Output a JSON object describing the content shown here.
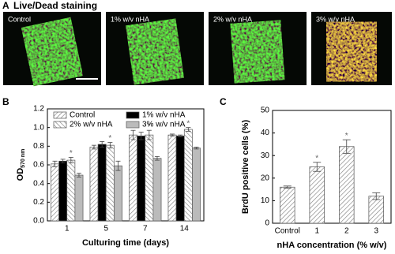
{
  "panel_a": {
    "letter": "A",
    "title": "Live/Dead staining",
    "images": [
      "Control",
      "1% w/v nHA",
      "2% w/v nHA",
      "3% w/v nHA"
    ]
  },
  "chart_data": [
    {
      "type": "bar",
      "letter": "B",
      "ylabel": "OD",
      "ylabel_sub": "570 nm",
      "xlabel": "Culturing time (days)",
      "categories": [
        "1",
        "5",
        "7",
        "14"
      ],
      "ylim": [
        0,
        1.2
      ],
      "yticks": [
        {
          "value": 0,
          "label": "0.0"
        },
        0.2,
        0.4,
        0.6,
        0.8,
        {
          "value": 1,
          "label": "1.0"
        },
        1.2
      ],
      "legend": "top",
      "series": [
        {
          "name": "Control",
          "color": "#ffffff",
          "hatch": "diagonal",
          "values": [
            0.61,
            0.79,
            0.92,
            0.92
          ],
          "errors": [
            0.03,
            0.02,
            0.05,
            0.01
          ]
        },
        {
          "name": "1% w/v nHA",
          "color": "#000000",
          "values": [
            0.64,
            0.82,
            0.91,
            0.91
          ],
          "errors": [
            0.02,
            0.03,
            0.04,
            0.01
          ]
        },
        {
          "name": "2% w/v nHA",
          "color": "#ffffff",
          "hatch": "back-diagonal",
          "values": [
            0.65,
            0.81,
            0.92,
            0.98
          ],
          "errors": [
            0.03,
            0.03,
            0.05,
            0.02
          ],
          "annotations": [
            "*",
            "*",
            "*",
            "*"
          ]
        },
        {
          "name": "3% w/v nHA",
          "color": "#bbbbbb",
          "values": [
            0.49,
            0.59,
            0.67,
            0.78
          ],
          "errors": [
            0.02,
            0.05,
            0.02,
            0.01
          ]
        }
      ]
    },
    {
      "type": "bar",
      "letter": "C",
      "ylabel": "BrdU positive cells (%)",
      "xlabel": "nHA concentration (% w/v)",
      "categories": [
        "Control",
        "1",
        "2",
        "3"
      ],
      "ylim": [
        0,
        50
      ],
      "yticks": [
        0,
        10,
        20,
        30,
        40,
        50
      ],
      "series": [
        {
          "color": "#ffffff",
          "hatch": "diagonal",
          "values": [
            16,
            25,
            34,
            12
          ],
          "errors": [
            0.5,
            2,
            3,
            1.5
          ],
          "annotations": [
            null,
            "*",
            "*",
            null
          ]
        }
      ]
    }
  ]
}
